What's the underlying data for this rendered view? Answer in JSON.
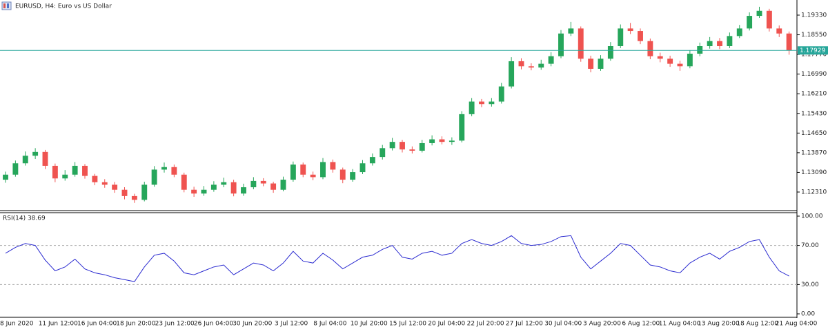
{
  "chart_data": [
    {
      "type": "candlestick",
      "title": "EURUSD, H4:  Euro vs US Dollar",
      "up_color": "#26a65b",
      "down_color": "#ef5350",
      "price_line_color": "#26a69a",
      "current_price": 1.17929,
      "ylim": [
        1.116,
        1.1993
      ],
      "yticks": [
        {
          "value": 1.1933,
          "label": "1.19330"
        },
        {
          "value": 1.1855,
          "label": "1.18550"
        },
        {
          "value": 1.1777,
          "label": "1.17770"
        },
        {
          "value": 1.1699,
          "label": "1.16990"
        },
        {
          "value": 1.1621,
          "label": "1.16210"
        },
        {
          "value": 1.1543,
          "label": "1.15430"
        },
        {
          "value": 1.1465,
          "label": "1.14650"
        },
        {
          "value": 1.1387,
          "label": "1.13870"
        },
        {
          "value": 1.1309,
          "label": "1.13090"
        },
        {
          "value": 1.1231,
          "label": "1.12310"
        }
      ],
      "x_labels": [
        "8 Jun 2020",
        "11 Jun 12:00",
        "16 Jun 04:00",
        "18 Jun 20:00",
        "23 Jun 12:00",
        "26 Jun 04:00",
        "30 Jun 20:00",
        "3 Jul 12:00",
        "8 Jul 04:00",
        "10 Jul 20:00",
        "15 Jul 12:00",
        "20 Jul 04:00",
        "22 Jul 20:00",
        "27 Jul 12:00",
        "30 Jul 04:00",
        "3 Aug 20:00",
        "6 Aug 12:00",
        "11 Aug 04:00",
        "13 Aug 20:00",
        "18 Aug 12:00",
        "21 Aug 04:00"
      ],
      "open": [
        1.128,
        1.13,
        1.1345,
        1.1375,
        1.139,
        1.1335,
        1.1285,
        1.13,
        1.1335,
        1.1295,
        1.127,
        1.126,
        1.124,
        1.1215,
        1.12,
        1.126,
        1.132,
        1.133,
        1.13,
        1.124,
        1.1225,
        1.124,
        1.126,
        1.127,
        1.1225,
        1.125,
        1.1275,
        1.1265,
        1.124,
        1.128,
        1.134,
        1.13,
        1.129,
        1.135,
        1.132,
        1.128,
        1.131,
        1.1345,
        1.137,
        1.1405,
        1.143,
        1.14,
        1.1395,
        1.1425,
        1.144,
        1.143,
        1.1435,
        1.154,
        1.159,
        1.158,
        1.159,
        1.165,
        1.175,
        1.173,
        1.1725,
        1.174,
        1.177,
        1.186,
        1.188,
        1.176,
        1.172,
        1.176,
        1.181,
        1.188,
        1.187,
        1.183,
        1.177,
        1.176,
        1.174,
        1.173,
        1.178,
        1.181,
        1.183,
        1.181,
        1.185,
        1.188,
        1.193,
        1.195,
        1.188,
        1.186
      ],
      "high": [
        1.1312,
        1.1356,
        1.1392,
        1.1405,
        1.1398,
        1.1344,
        1.1318,
        1.135,
        1.1342,
        1.1303,
        1.1282,
        1.1271,
        1.125,
        1.1224,
        1.1272,
        1.1334,
        1.1348,
        1.134,
        1.1308,
        1.1252,
        1.1255,
        1.1274,
        1.1288,
        1.128,
        1.1264,
        1.129,
        1.1286,
        1.1272,
        1.1292,
        1.1352,
        1.1348,
        1.1312,
        1.1366,
        1.136,
        1.1328,
        1.1322,
        1.1358,
        1.1384,
        1.1418,
        1.1446,
        1.1438,
        1.1412,
        1.1438,
        1.1456,
        1.1452,
        1.1448,
        1.1552,
        1.1604,
        1.16,
        1.1604,
        1.1664,
        1.1766,
        1.1762,
        1.1742,
        1.1756,
        1.1786,
        1.1874,
        1.1906,
        1.1888,
        1.1772,
        1.1774,
        1.1826,
        1.1896,
        1.1902,
        1.188,
        1.184,
        1.1784,
        1.1772,
        1.1752,
        1.1794,
        1.1824,
        1.1846,
        1.1842,
        1.1864,
        1.1894,
        1.1944,
        1.1966,
        1.1958,
        1.1892,
        1.1868
      ],
      "low": [
        1.1268,
        1.1292,
        1.1336,
        1.1362,
        1.1322,
        1.127,
        1.1276,
        1.1292,
        1.1284,
        1.1258,
        1.1248,
        1.1228,
        1.1202,
        1.1188,
        1.1194,
        1.1252,
        1.1308,
        1.129,
        1.123,
        1.1212,
        1.1216,
        1.1232,
        1.125,
        1.1214,
        1.1216,
        1.1242,
        1.1254,
        1.1228,
        1.1234,
        1.1272,
        1.129,
        1.1278,
        1.1282,
        1.1308,
        1.1266,
        1.1272,
        1.1302,
        1.1336,
        1.136,
        1.1396,
        1.1388,
        1.1384,
        1.1388,
        1.1416,
        1.142,
        1.1418,
        1.1428,
        1.1532,
        1.1568,
        1.157,
        1.1582,
        1.1642,
        1.1718,
        1.1714,
        1.1716,
        1.173,
        1.1762,
        1.185,
        1.1748,
        1.1706,
        1.1712,
        1.1752,
        1.1802,
        1.1858,
        1.1818,
        1.1758,
        1.1746,
        1.1728,
        1.1712,
        1.1722,
        1.177,
        1.18,
        1.1798,
        1.1802,
        1.1842,
        1.1872,
        1.1922,
        1.1868,
        1.1846,
        1.1776
      ],
      "close": [
        1.13,
        1.1345,
        1.1375,
        1.139,
        1.1335,
        1.1285,
        1.13,
        1.1335,
        1.1295,
        1.127,
        1.126,
        1.124,
        1.1215,
        1.12,
        1.126,
        1.132,
        1.133,
        1.13,
        1.124,
        1.1225,
        1.124,
        1.126,
        1.127,
        1.1225,
        1.125,
        1.1275,
        1.1265,
        1.124,
        1.128,
        1.134,
        1.13,
        1.129,
        1.135,
        1.132,
        1.128,
        1.131,
        1.1345,
        1.137,
        1.1405,
        1.143,
        1.14,
        1.1395,
        1.1425,
        1.144,
        1.143,
        1.1435,
        1.154,
        1.159,
        1.158,
        1.159,
        1.165,
        1.175,
        1.173,
        1.1725,
        1.174,
        1.177,
        1.186,
        1.188,
        1.176,
        1.172,
        1.176,
        1.181,
        1.188,
        1.187,
        1.183,
        1.177,
        1.176,
        1.174,
        1.173,
        1.178,
        1.181,
        1.183,
        1.181,
        1.185,
        1.188,
        1.193,
        1.195,
        1.188,
        1.186,
        1.1793
      ]
    },
    {
      "type": "line",
      "label": "RSI(14) 38.69",
      "color": "#2a2ad0",
      "ylim": [
        0,
        100
      ],
      "yticks": [
        {
          "value": 100,
          "label": "100.00"
        },
        {
          "value": 70,
          "label": "70.00"
        },
        {
          "value": 30,
          "label": "30.00"
        },
        {
          "value": 0,
          "label": "0.00"
        }
      ],
      "levels": [
        70,
        30
      ],
      "values": [
        62,
        68,
        72,
        70,
        55,
        44,
        48,
        56,
        46,
        42,
        40,
        37,
        35,
        33,
        48,
        60,
        62,
        54,
        42,
        40,
        44,
        48,
        50,
        40,
        46,
        52,
        50,
        44,
        52,
        64,
        54,
        52,
        62,
        55,
        46,
        52,
        58,
        60,
        66,
        70,
        58,
        56,
        62,
        64,
        60,
        62,
        72,
        76,
        72,
        70,
        74,
        80,
        72,
        70,
        71,
        74,
        79,
        80,
        58,
        46,
        54,
        62,
        72,
        70,
        60,
        50,
        48,
        44,
        42,
        52,
        58,
        62,
        56,
        64,
        68,
        74,
        76,
        58,
        44,
        38.69
      ]
    }
  ]
}
